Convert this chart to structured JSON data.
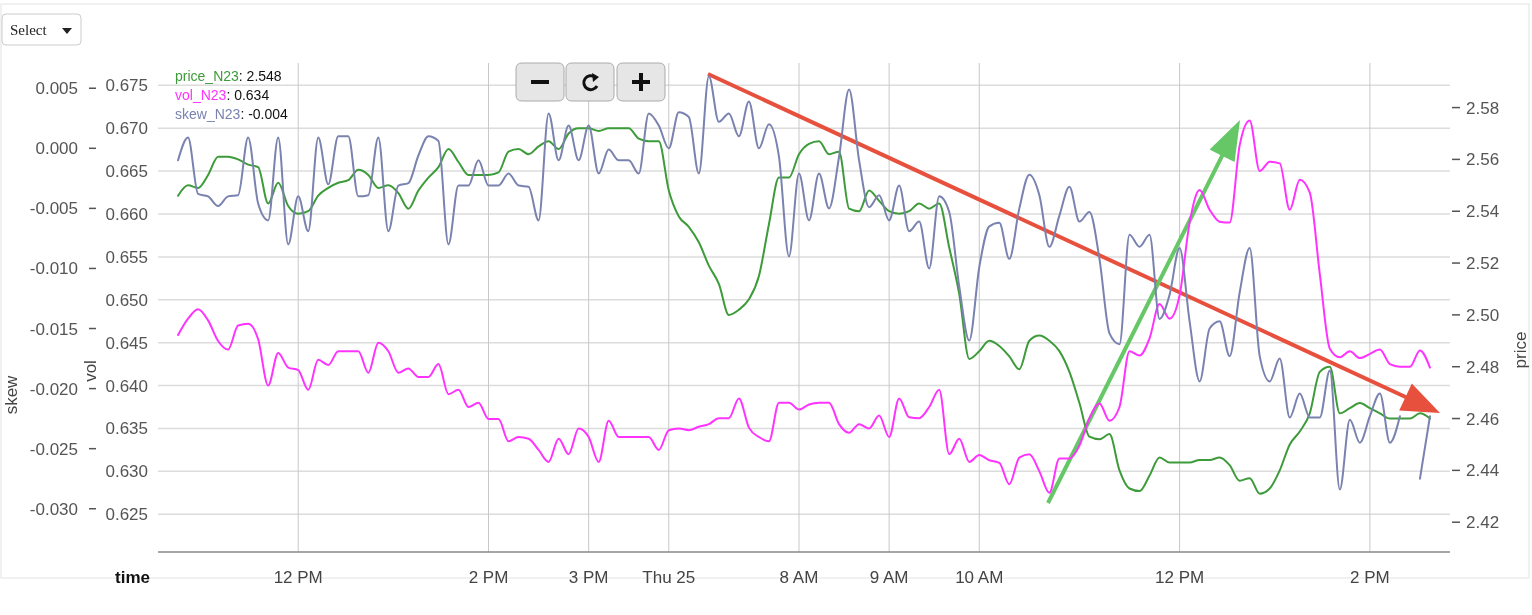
{
  "chart_data": {
    "type": "line",
    "xlabel": "time",
    "ylabel": "skew",
    "y2label": "price",
    "y3label": "vol",
    "annotations": [
      "Select",
      ": 2.548",
      ": 0.634",
      ": -0.004"
    ],
    "legend": "top left",
    "grid": true,
    "marker": "none",
    "line_style": "solid",
    "categories": [
      null,
      null,
      null,
      null,
      null,
      null,
      null,
      null,
      null,
      null,
      null,
      null,
      null,
      null,
      "12 PM",
      null,
      null,
      null,
      null,
      null,
      null,
      null,
      null,
      null,
      null,
      null,
      null,
      null,
      null,
      null,
      null,
      null,
      null,
      "2 PM",
      null,
      null,
      null,
      null,
      null,
      null,
      null,
      null,
      null,
      "3 PM",
      null,
      null,
      null,
      null,
      null,
      null,
      null,
      "Thu 25",
      null,
      null,
      null,
      null,
      null,
      null,
      null,
      null,
      null,
      null,
      null,
      null,
      "8 AM",
      null,
      null,
      null,
      null,
      null,
      null,
      null,
      null,
      "9 AM",
      null,
      null,
      null,
      null,
      null,
      null,
      null,
      null,
      "10 AM",
      null,
      null,
      null,
      null,
      null,
      null,
      null,
      null,
      null,
      null,
      null,
      null,
      null,
      null,
      null,
      null,
      null,
      null,
      null,
      "12 PM",
      null,
      null,
      null,
      null,
      null,
      null,
      null,
      null,
      null,
      null,
      null,
      null,
      null,
      null,
      null,
      null,
      null,
      null,
      "2 PM",
      null,
      null,
      null,
      null,
      null,
      null,
      null,
      null
    ],
    "ylim": [
      -0.0336,
      0.0071
    ],
    "yticks": [
      {
        "value": -0.03,
        "label": "-0.030"
      },
      -0.025,
      {
        "value": -0.02,
        "label": "-0.020"
      },
      -0.015,
      {
        "value": -0.01,
        "label": "-0.010"
      },
      -0.005,
      {
        "value": 0,
        "label": "0.000"
      },
      0.005
    ],
    "y2lim": [
      2.4085,
      2.5972
    ],
    "y2ticks": [
      2.42,
      2.44,
      2.46,
      2.48,
      {
        "value": 2.5,
        "label": "2.50"
      },
      2.52,
      2.54,
      2.56,
      2.58
    ],
    "y3lim": [
      0.6206,
      0.6776
    ],
    "y3ticks": [
      0.625,
      {
        "value": 0.63,
        "label": "0.630"
      },
      0.635,
      {
        "value": 0.64,
        "label": "0.640"
      },
      0.645,
      {
        "value": 0.65,
        "label": "0.650"
      },
      0.655,
      {
        "value": 0.66,
        "label": "0.660"
      },
      0.665,
      {
        "value": 0.67,
        "label": "0.670"
      },
      0.675
    ],
    "series": [
      {
        "name": "price_N23",
        "color": "#3d9b3a",
        "axis": "y2",
        "values": [
          null,
          null,
          2.546,
          2.55,
          2.549,
          2.554,
          2.561,
          2.561,
          2.56,
          2.558,
          2.557,
          2.543,
          2.551,
          2.542,
          2.539,
          2.54,
          2.546,
          2.549,
          2.551,
          2.552,
          2.556,
          2.554,
          2.549,
          2.55,
          2.547,
          2.541,
          2.548,
          2.553,
          2.557,
          2.564,
          2.559,
          2.554,
          2.554,
          2.554,
          2.555,
          2.563,
          2.564,
          2.562,
          2.565,
          2.567,
          2.564,
          2.57,
          2.572,
          2.572,
          2.571,
          2.572,
          2.572,
          2.572,
          2.568,
          2.567,
          2.567,
          2.548,
          2.538,
          2.534,
          2.528,
          2.519,
          2.512,
          2.5,
          2.502,
          2.506,
          2.515,
          2.535,
          2.553,
          2.553,
          2.562,
          2.566,
          2.567,
          2.562,
          2.563,
          2.541,
          2.54,
          2.548,
          2.544,
          2.54,
          2.539,
          2.54,
          2.543,
          2.541,
          2.543,
          2.526,
          2.508,
          2.483,
          2.486,
          2.49,
          2.488,
          2.484,
          2.479,
          2.49,
          2.492,
          2.49,
          2.486,
          2.478,
          2.466,
          2.453,
          2.452,
          2.454,
          2.44,
          2.433,
          2.432,
          2.438,
          2.445,
          2.443,
          2.443,
          2.443,
          2.444,
          2.444,
          2.445,
          2.442,
          2.436,
          2.437,
          2.431,
          2.433,
          2.44,
          2.45,
          2.455,
          2.462,
          2.478,
          2.48,
          2.462,
          2.464,
          2.466,
          2.464,
          2.462,
          2.46,
          2.46,
          2.46,
          2.462,
          2.46,
          null,
          null
        ]
      },
      {
        "name": "vol_N23",
        "color": "#ff33ff",
        "axis": "y3",
        "values": [
          null,
          null,
          0.6459,
          0.6478,
          0.6489,
          0.6476,
          0.6452,
          0.6442,
          0.647,
          0.6472,
          0.6454,
          0.64,
          0.6438,
          0.6421,
          0.6418,
          0.6395,
          0.643,
          0.6424,
          0.644,
          0.644,
          0.644,
          0.6415,
          0.645,
          0.644,
          0.6415,
          0.642,
          0.641,
          0.641,
          0.6425,
          0.639,
          0.6395,
          0.6375,
          0.638,
          0.6361,
          0.6361,
          0.6335,
          0.634,
          0.6338,
          0.6325,
          0.6311,
          0.6338,
          0.632,
          0.635,
          0.634,
          0.6311,
          0.6359,
          0.634,
          0.634,
          0.634,
          0.634,
          0.6325,
          0.6348,
          0.635,
          0.6348,
          0.6352,
          0.6355,
          0.6362,
          0.6362,
          0.6385,
          0.6351,
          0.634,
          0.6335,
          0.638,
          0.638,
          0.6372,
          0.6378,
          0.638,
          0.638,
          0.6355,
          0.6345,
          0.6355,
          0.635,
          0.6365,
          0.634,
          0.6385,
          0.6363,
          0.6362,
          0.6375,
          0.6395,
          0.632,
          0.6338,
          0.6311,
          0.6319,
          0.6313,
          0.631,
          0.6285,
          0.6316,
          0.632,
          0.63,
          0.6275,
          0.6315,
          0.6315,
          0.633,
          0.6362,
          0.6379,
          0.6359,
          0.6375,
          0.644,
          0.6435,
          0.6455,
          0.6495,
          0.6478,
          0.6505,
          0.659,
          0.6628,
          0.6605,
          0.6591,
          0.659,
          0.668,
          0.6709,
          0.665,
          0.6661,
          0.6659,
          0.6605,
          0.664,
          0.6625,
          0.653,
          0.6443,
          0.6433,
          0.644,
          0.6432,
          0.6437,
          0.6442,
          0.6425,
          0.6422,
          0.6422,
          0.6441,
          0.6421,
          null,
          null
        ]
      },
      {
        "name": "skew_N23",
        "color": "#7a82b0",
        "axis": "y",
        "values": [
          null,
          null,
          -0.001,
          0.0009,
          -0.0038,
          -0.004,
          -0.0048,
          -0.004,
          -0.0039,
          0.0009,
          -0.0046,
          -0.006,
          0.0009,
          -0.008,
          -0.004,
          -0.0069,
          0.0009,
          -0.003,
          0.001,
          0.001,
          -0.004,
          -0.0039,
          0.0009,
          -0.0069,
          -0.0031,
          -0.0029,
          -0.0006,
          0.001,
          0.0006,
          -0.008,
          -0.0031,
          -0.0031,
          -0.001,
          -0.0031,
          -0.0031,
          -0.0021,
          -0.0031,
          -0.0032,
          -0.006,
          0.0029,
          -0.001,
          0.0019,
          -0.001,
          0.0019,
          -0.0021,
          -0.0001,
          -0.001,
          -0.001,
          -0.0021,
          0.0029,
          0.0019,
          0.0,
          0.003,
          0.0026,
          -0.0021,
          0.006,
          0.0022,
          0.0029,
          0.001,
          0.0039,
          0.0,
          0.002,
          -0.0007,
          -0.009,
          -0.0021,
          -0.006,
          -0.0021,
          -0.005,
          -0.0007,
          0.0049,
          -0.001,
          -0.0049,
          -0.0039,
          -0.006,
          -0.0031,
          -0.0069,
          -0.0061,
          -0.01,
          -0.004,
          -0.0053,
          -0.0115,
          -0.016,
          -0.0099,
          -0.0065,
          -0.0062,
          -0.0092,
          -0.005,
          -0.0022,
          -0.0039,
          -0.0082,
          -0.0056,
          -0.0032,
          -0.0061,
          -0.0053,
          -0.0092,
          -0.0154,
          -0.0163,
          -0.0072,
          -0.0082,
          -0.0072,
          -0.0142,
          -0.0122,
          -0.0083,
          -0.0144,
          -0.0194,
          -0.015,
          -0.0144,
          -0.0173,
          -0.012,
          -0.0083,
          -0.0173,
          -0.0194,
          -0.0175,
          -0.0224,
          -0.0204,
          -0.0224,
          -0.0224,
          -0.0185,
          -0.0284,
          -0.0226,
          -0.0245,
          -0.0223,
          -0.0204,
          -0.0245,
          -0.0223,
          null,
          -0.0275,
          -0.0223,
          null,
          null
        ]
      }
    ]
  }
}
